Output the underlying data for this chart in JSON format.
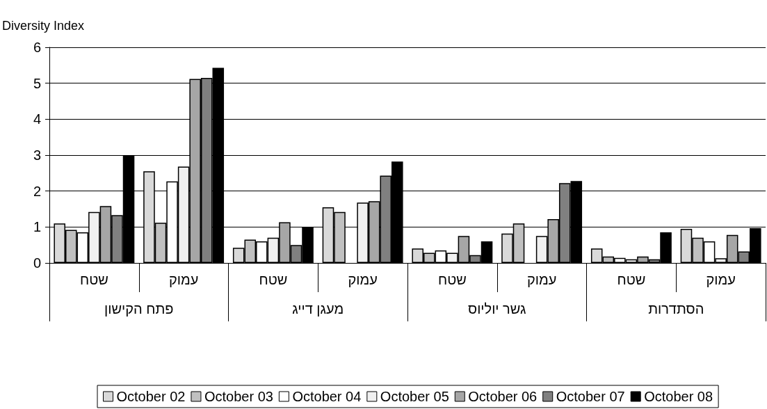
{
  "chart_data": {
    "type": "bar",
    "ylabel": "Diversity Index",
    "categories": [
      "שטח",
      "עמוק",
      "שטח",
      "עמוק",
      "שטח",
      "עמוק",
      "שטח",
      "עמוק"
    ],
    "annotations": [
      "פתח הקישון",
      "מעגן דייג",
      "גשר יוליוס",
      "הסתדרות"
    ],
    "series": [
      {
        "name": "October 02",
        "color": "#d9d9d9",
        "values": [
          1.1,
          2.55,
          0.42,
          1.55,
          0.4,
          0.82,
          0.4,
          0.95
        ]
      },
      {
        "name": "October 03",
        "color": "#c0c0c0",
        "values": [
          0.92,
          1.12,
          0.65,
          1.42,
          0.28,
          1.1,
          0.18,
          0.7
        ]
      },
      {
        "name": "October 04",
        "color": "#ffffff",
        "values": [
          0.85,
          2.27,
          0.6,
          null,
          0.35,
          null,
          0.14,
          0.6
        ]
      },
      {
        "name": "October 05",
        "color": "#f0f0f0",
        "values": [
          1.42,
          2.68,
          0.7,
          1.68,
          0.28,
          0.75,
          0.1,
          0.13
        ]
      },
      {
        "name": "October 06",
        "color": "#a6a6a6",
        "values": [
          1.58,
          5.12,
          1.13,
          1.72,
          0.75,
          1.22,
          0.18,
          0.78
        ]
      },
      {
        "name": "October 07",
        "color": "#808080",
        "values": [
          1.33,
          5.15,
          0.5,
          2.43,
          0.22,
          2.22,
          0.1,
          0.32
        ]
      },
      {
        "name": "October 08",
        "color": "#000000",
        "values": [
          2.98,
          5.43,
          1.0,
          2.82,
          0.6,
          2.28,
          0.85,
          0.97
        ]
      }
    ],
    "ylim": [
      0,
      6
    ],
    "yticks": [
      0,
      1,
      2,
      3,
      4,
      5,
      6
    ],
    "grid": "y",
    "legend": "bottom"
  }
}
